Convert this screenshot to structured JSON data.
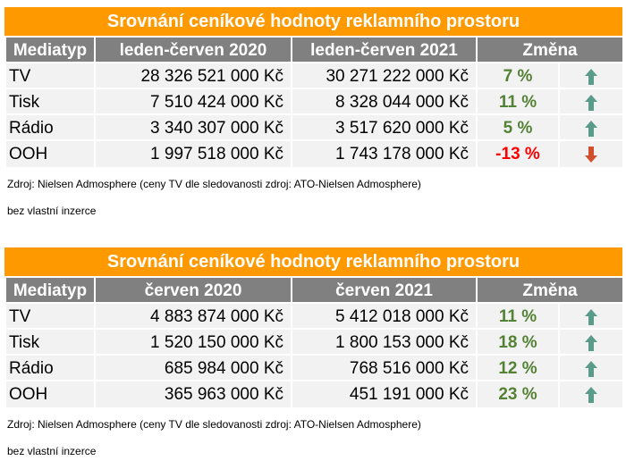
{
  "tables": [
    {
      "title": "Srovnání ceníkové hodnoty reklamního prostoru",
      "headers": [
        "Mediatyp",
        "leden-červen 2020",
        "leden-červen 2021",
        "Změna"
      ],
      "rows": [
        {
          "media": "TV",
          "v2020": "28 326 521 000 Kč",
          "v2021": "30 271 222 000 Kč",
          "change": "7 %",
          "direction": "up"
        },
        {
          "media": "Tisk",
          "v2020": "7 510 424 000 Kč",
          "v2021": "8 328 044 000 Kč",
          "change": "11 %",
          "direction": "up"
        },
        {
          "media": "Rádio",
          "v2020": "3 340 307 000 Kč",
          "v2021": "3 517 620 000 Kč",
          "change": "5 %",
          "direction": "up"
        },
        {
          "media": "OOH",
          "v2020": "1 997 518 000 Kč",
          "v2021": "1 743 178 000 Kč",
          "change": "-13 %",
          "direction": "down"
        }
      ],
      "source": "Zdroj: Nielsen Admosphere (ceny TV dle sledovanosti zdroj: ATO-Nielsen Admosphere)",
      "note": "bez vlastní inzerce"
    },
    {
      "title": "Srovnání ceníkové hodnoty reklamního prostoru",
      "headers": [
        "Mediatyp",
        "červen 2020",
        "červen 2021",
        "Změna"
      ],
      "rows": [
        {
          "media": "TV",
          "v2020": "4 883 874 000 Kč",
          "v2021": "5 412 018 000 Kč",
          "change": "11 %",
          "direction": "up"
        },
        {
          "media": "Tisk",
          "v2020": "1 520 150 000 Kč",
          "v2021": "1 800 153 000 Kč",
          "change": "18 %",
          "direction": "up"
        },
        {
          "media": "Rádio",
          "v2020": "685 984 000 Kč",
          "v2021": "768 516 000 Kč",
          "change": "12 %",
          "direction": "up"
        },
        {
          "media": "OOH",
          "v2020": "365 963 000 Kč",
          "v2021": "451 191 000 Kč",
          "change": "23 %",
          "direction": "up"
        }
      ],
      "source": "Zdroj: Nielsen Admosphere (ceny TV dle sledovanosti zdroj: ATO-Nielsen Admosphere)",
      "note": "bez vlastní inzerce"
    }
  ],
  "colors": {
    "header_orange": "#ff9900",
    "header_gray": "#808080",
    "positive": "#548235",
    "negative": "#ff0000",
    "arrow_up": "#5b9b8a",
    "arrow_down": "#d0502e"
  }
}
